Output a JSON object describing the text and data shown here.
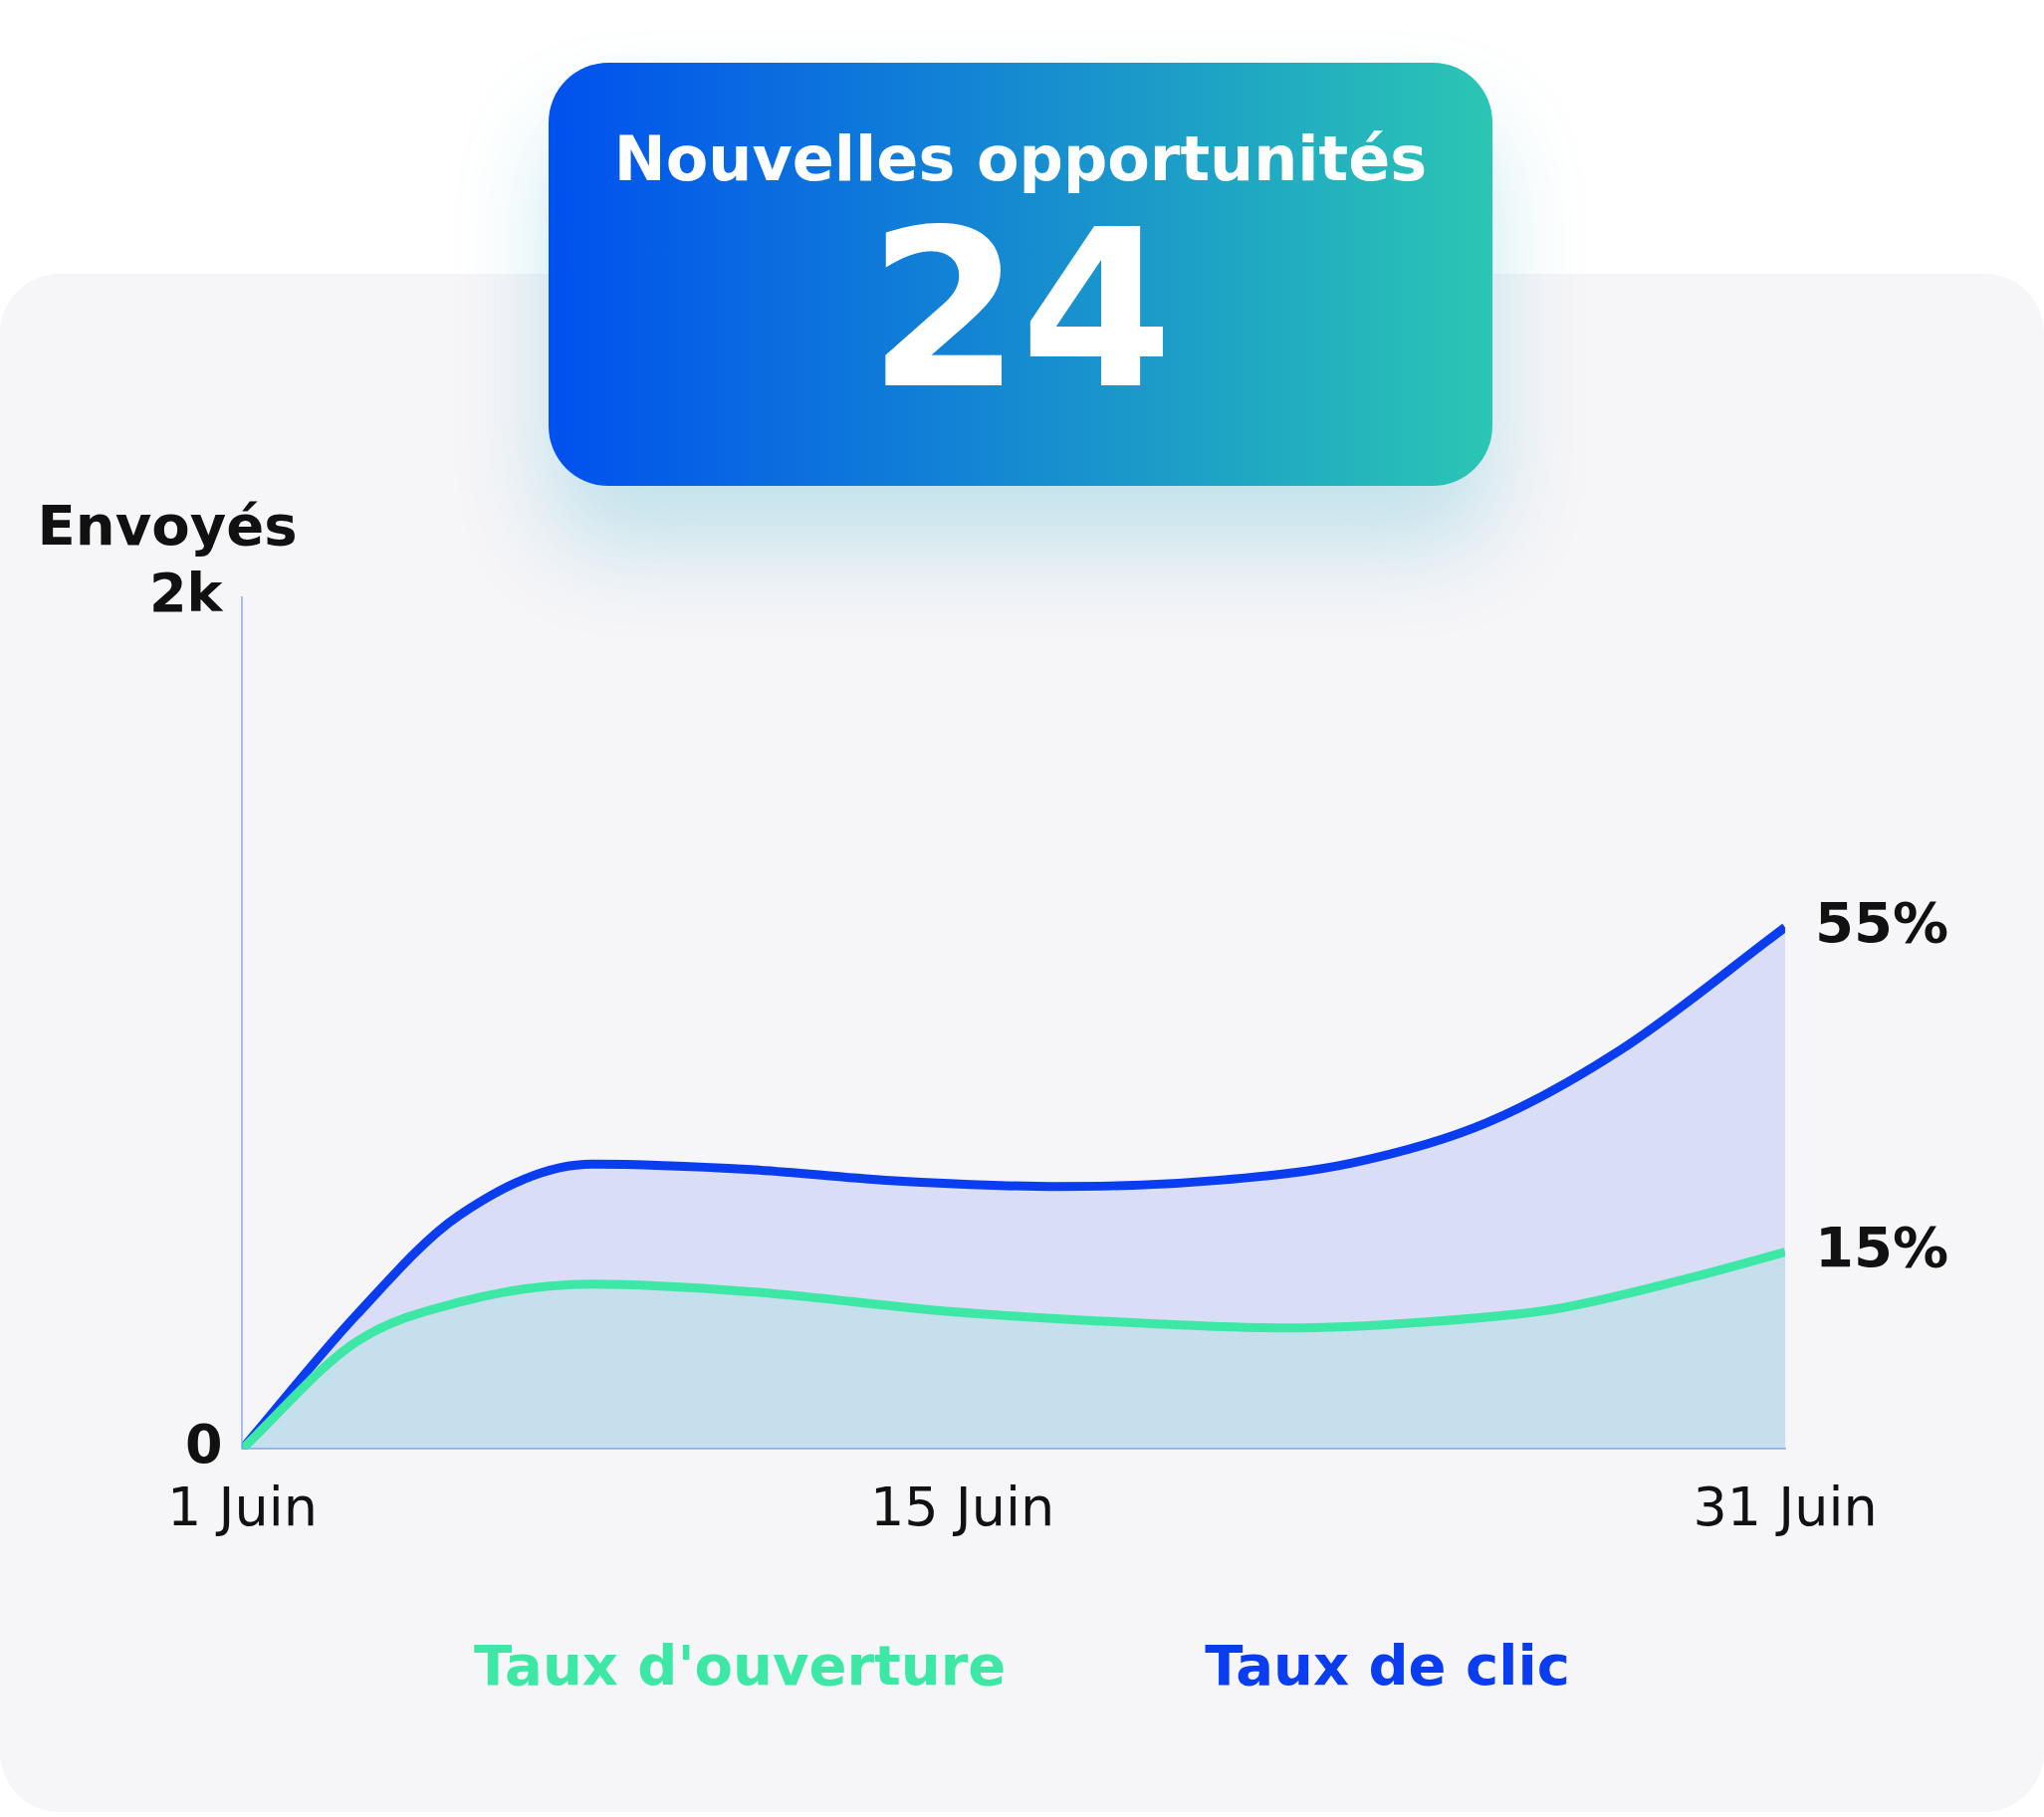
{
  "chart_data": [
    {
      "type": "other",
      "title": "Nouvelles opportunités",
      "annotations": [
        "24"
      ]
    },
    {
      "type": "area",
      "ylabel": "Envoyés",
      "xlim": [
        1,
        31
      ],
      "xticks": [
        {
          "value": 1,
          "label": "1 Juin"
        },
        {
          "value": 15,
          "label": "15 Juin"
        },
        {
          "value": 31,
          "label": "31 Juin"
        }
      ],
      "ylim": [
        0,
        2000
      ],
      "yticks": [
        0,
        {
          "value": 2000,
          "label": "2k"
        }
      ],
      "grid": false,
      "legend": "bottom",
      "marker": "none",
      "series": [
        {
          "name": "Taux d'ouverture",
          "color": "#3de8a6",
          "x": [
            1,
            3.2,
            5.2,
            7.8,
            10.9,
            14.8,
            18.7,
            21.3,
            23.9,
            26.5,
            29.1,
            31
          ],
          "values": [
            0,
            250,
            344,
            387,
            369,
            322,
            294,
            284,
            297,
            328,
            400,
            462
          ]
        },
        {
          "name": "Taux de clic",
          "color": "#0a3cf0",
          "x": [
            1,
            3.2,
            5.2,
            7.8,
            10.9,
            13.5,
            16.9,
            20,
            22.6,
            25.2,
            27.8,
            31
          ],
          "values": [
            0,
            312,
            547,
            669,
            656,
            631,
            616,
            631,
            672,
            766,
            937,
            1225
          ]
        }
      ],
      "annotations": [
        {
          "text": "55%",
          "x": 31,
          "y": 1225
        },
        {
          "text": "15%",
          "x": 31,
          "y": 462
        }
      ]
    }
  ]
}
